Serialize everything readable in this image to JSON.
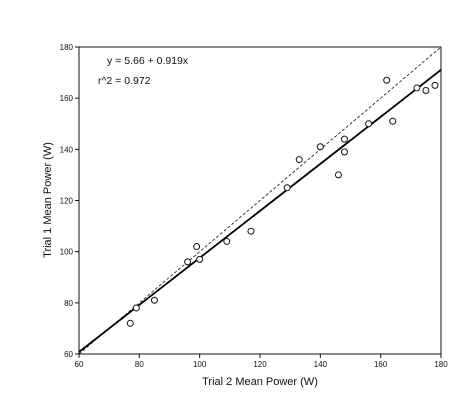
{
  "chart_data": {
    "type": "scatter",
    "title": "",
    "xlabel": "Trial 2 Mean Power (W)",
    "ylabel": "Trial 1 Mean Power (W)",
    "xlim": [
      60,
      180
    ],
    "ylim": [
      60,
      180
    ],
    "xticks": [
      "60",
      "80",
      "100",
      "120",
      "140",
      "160",
      "180"
    ],
    "yticks": [
      "60",
      "80",
      "100",
      "120",
      "140",
      "160",
      "180"
    ],
    "grid": false,
    "legend": "none",
    "marker": "open-circle",
    "points": [
      {
        "x": 77,
        "y": 72
      },
      {
        "x": 79,
        "y": 78
      },
      {
        "x": 85,
        "y": 81
      },
      {
        "x": 96,
        "y": 96
      },
      {
        "x": 99,
        "y": 102
      },
      {
        "x": 100,
        "y": 97
      },
      {
        "x": 109,
        "y": 104
      },
      {
        "x": 117,
        "y": 108
      },
      {
        "x": 129,
        "y": 125
      },
      {
        "x": 133,
        "y": 136
      },
      {
        "x": 140,
        "y": 141
      },
      {
        "x": 146,
        "y": 130
      },
      {
        "x": 148,
        "y": 139
      },
      {
        "x": 148,
        "y": 144
      },
      {
        "x": 156,
        "y": 150
      },
      {
        "x": 162,
        "y": 167
      },
      {
        "x": 164,
        "y": 151
      },
      {
        "x": 172,
        "y": 164
      },
      {
        "x": 175,
        "y": 163
      },
      {
        "x": 178,
        "y": 165
      }
    ],
    "fit_line": {
      "intercept": 5.66,
      "slope": 0.919,
      "style": "solid"
    },
    "identity_line": {
      "intercept": 0,
      "slope": 1,
      "style": "dashed"
    },
    "annotations": {
      "equation": "y = 5.66 + 0.919x",
      "r_squared": "r^2 = 0.972"
    }
  }
}
